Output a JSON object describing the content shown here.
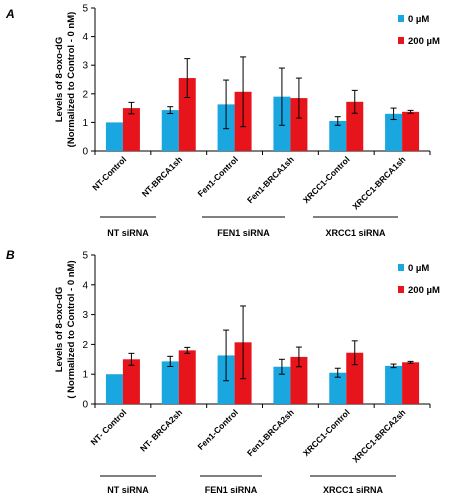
{
  "chart_data": [
    {
      "type": "bar",
      "panel": "A",
      "ylabel": [
        "Levels of 8-oxo-dG",
        "(Normalized to Control - 0 nM)"
      ],
      "ylim": [
        0,
        5
      ],
      "yticks": [
        0,
        1,
        2,
        3,
        4,
        5
      ],
      "categories": [
        "NT-Control",
        "NT-BRCA1sh",
        "Fen1-Control",
        "Fen1-BRCA1sh",
        "XRCC1-Control",
        "XRCC1-BRCA1sh"
      ],
      "series": [
        {
          "name": "0 µM",
          "color": "#1aa7e0",
          "values": [
            1.0,
            1.43,
            1.63,
            1.9,
            1.05,
            1.3
          ],
          "errors": [
            0.0,
            0.12,
            0.85,
            1.0,
            0.15,
            0.2
          ]
        },
        {
          "name": "200 µM",
          "color": "#e8141c",
          "values": [
            1.5,
            2.55,
            2.07,
            1.85,
            1.72,
            1.37
          ],
          "errors": [
            0.2,
            0.68,
            1.22,
            0.7,
            0.4,
            0.05
          ]
        }
      ],
      "groups": [
        "NT siRNA",
        "FEN1 siRNA",
        "XRCC1 siRNA"
      ],
      "legend_position": "top-right",
      "grid": false
    },
    {
      "type": "bar",
      "panel": "B",
      "ylabel": [
        "Levels of 8-oxo-dG",
        "( Normalized to Control - 0 nM)"
      ],
      "ylim": [
        0,
        5
      ],
      "yticks": [
        0,
        1,
        2,
        3,
        4,
        5
      ],
      "categories": [
        "NT- Control",
        "NT- BRCA2sh",
        "Fen1-Control",
        "Fen1-BRCA2sh",
        "XRCC1-Control",
        "XRCC1-BRCA2sh"
      ],
      "series": [
        {
          "name": "0 µM",
          "color": "#1aa7e0",
          "values": [
            1.0,
            1.43,
            1.63,
            1.25,
            1.05,
            1.28
          ],
          "errors": [
            0.0,
            0.17,
            0.85,
            0.25,
            0.15,
            0.06
          ]
        },
        {
          "name": "200 µM",
          "color": "#e8141c",
          "values": [
            1.5,
            1.8,
            2.07,
            1.58,
            1.72,
            1.4
          ],
          "errors": [
            0.2,
            0.1,
            1.22,
            0.33,
            0.4,
            0.03
          ]
        }
      ],
      "groups": [
        "NT siRNA",
        "FEN1 siRNA",
        "XRCC1 siRNA"
      ],
      "legend_position": "top-right",
      "grid": false
    }
  ]
}
